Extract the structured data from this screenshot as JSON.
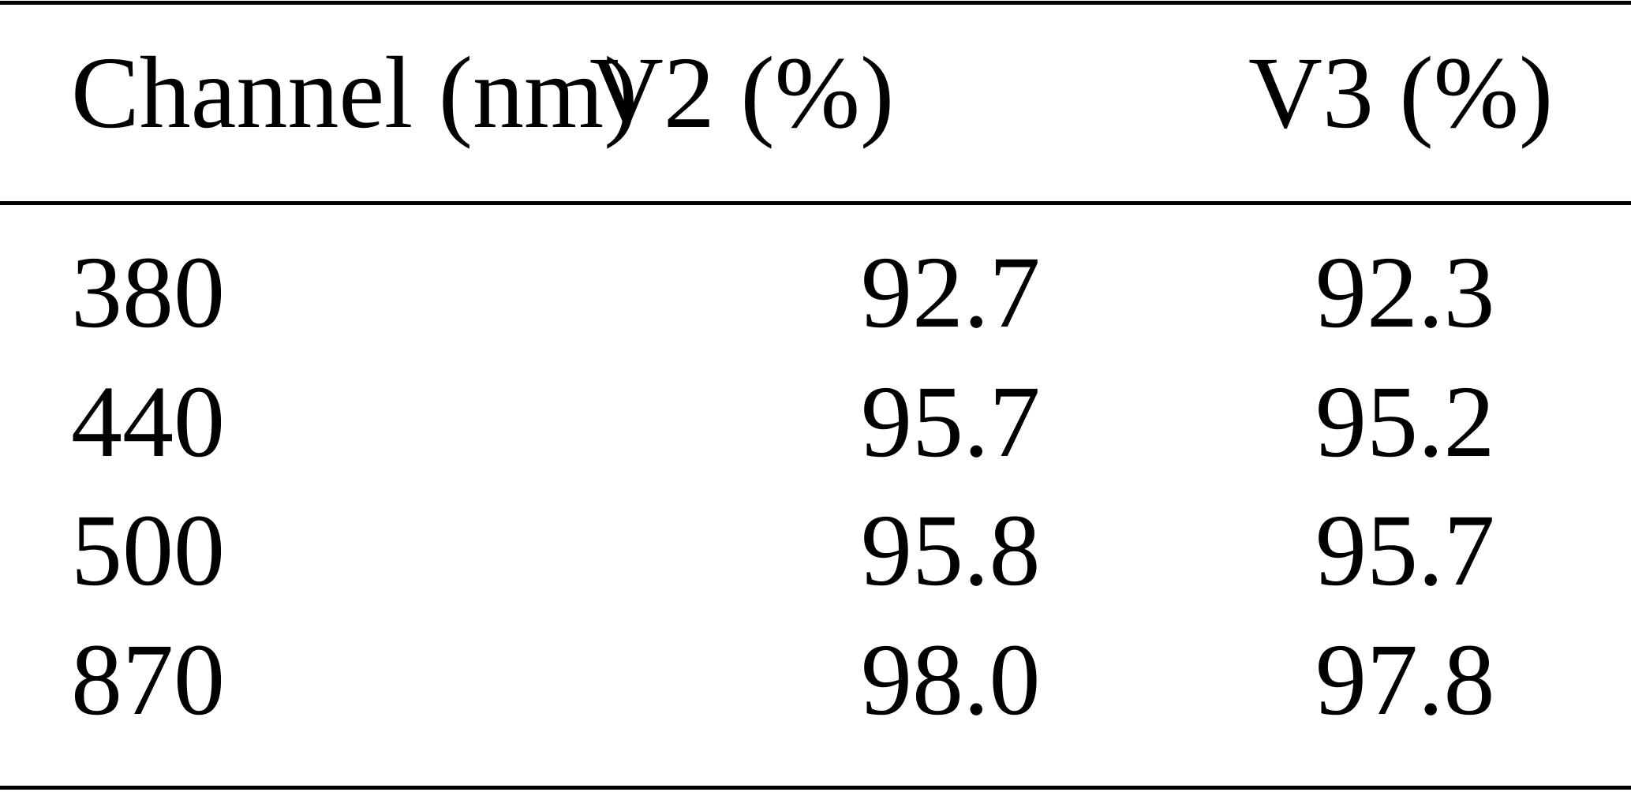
{
  "table": {
    "headers": [
      "Channel (nm)",
      "V2 (%)",
      "V3 (%)"
    ],
    "rows": [
      [
        "380",
        "92.7",
        "92.3"
      ],
      [
        "440",
        "95.7",
        "95.2"
      ],
      [
        "500",
        "95.8",
        "95.7"
      ],
      [
        "870",
        "98.0",
        "97.8"
      ]
    ]
  }
}
